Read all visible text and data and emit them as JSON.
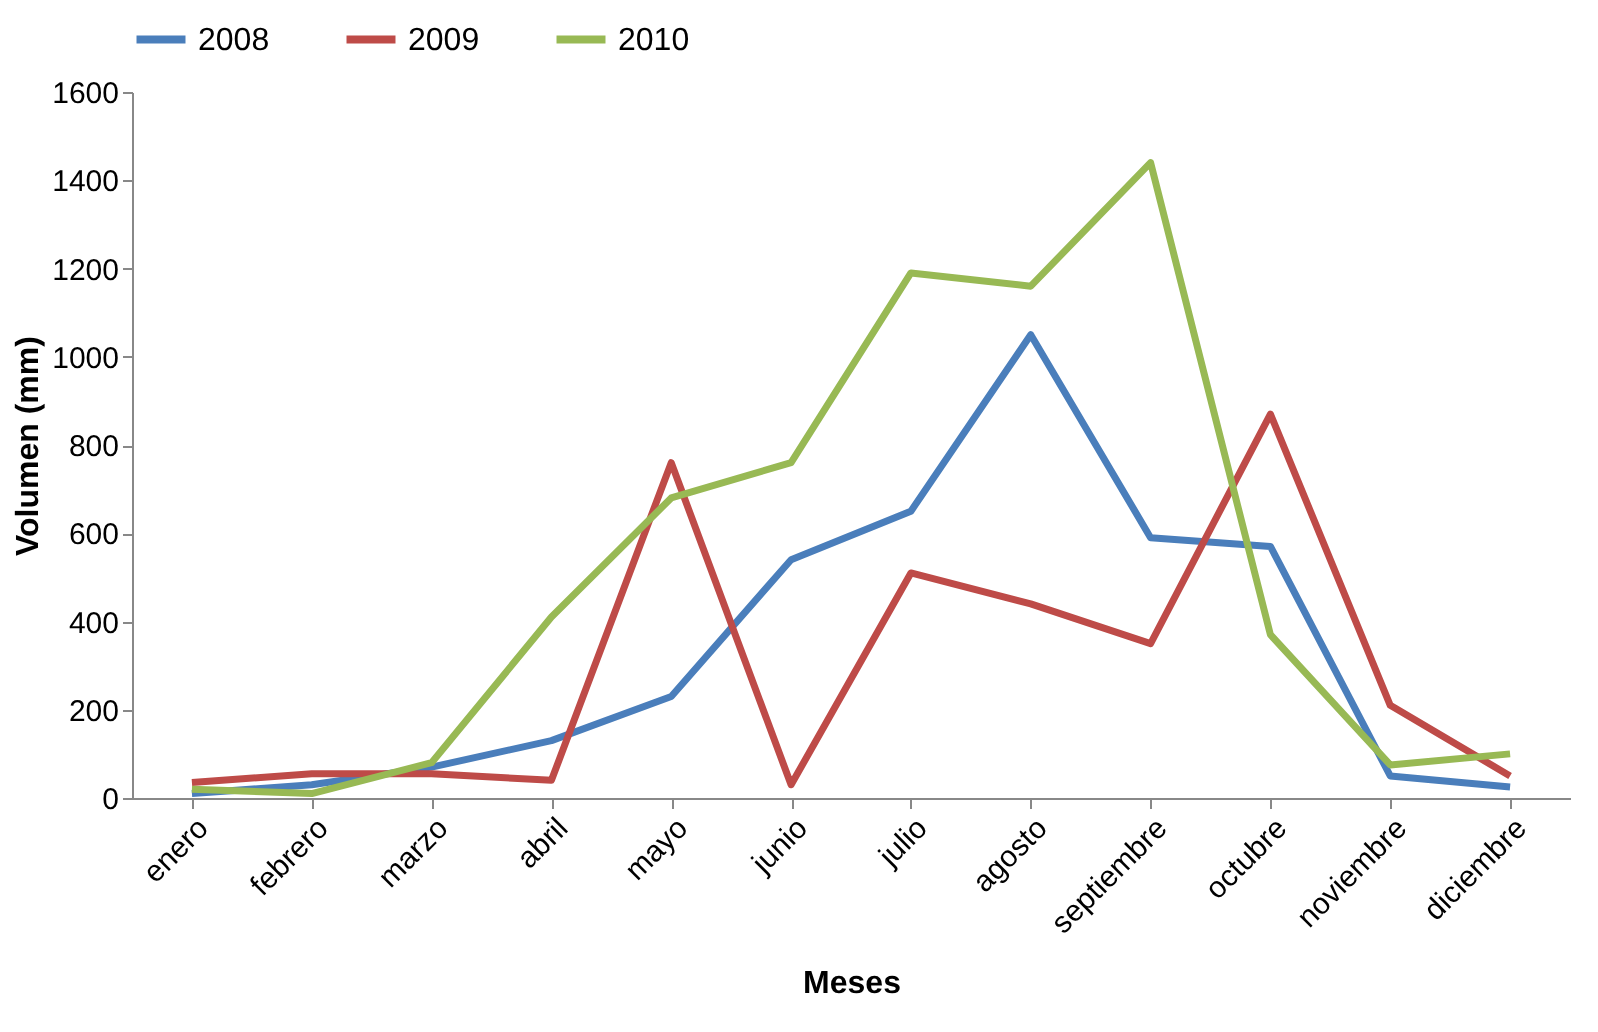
{
  "chart_data": {
    "type": "line",
    "xlabel": "Meses",
    "ylabel": "Volumen (mm)",
    "categories": [
      "enero",
      "febrero",
      "marzo",
      "abril",
      "mayo",
      "junio",
      "julio",
      "agosto",
      "septiembre",
      "octubre",
      "noviembre",
      "diciembre"
    ],
    "series": [
      {
        "name": "2008",
        "color": "#4a7ebb",
        "values": [
          10,
          30,
          70,
          130,
          230,
          540,
          650,
          1050,
          590,
          570,
          50,
          25
        ]
      },
      {
        "name": "2009",
        "color": "#be4b48",
        "values": [
          35,
          55,
          55,
          40,
          760,
          30,
          510,
          440,
          350,
          870,
          210,
          50
        ]
      },
      {
        "name": "2010",
        "color": "#98b954",
        "values": [
          20,
          10,
          80,
          410,
          680,
          760,
          1190,
          1160,
          1440,
          370,
          75,
          100
        ]
      }
    ],
    "ylim": [
      0,
      1600
    ],
    "yticks": [
      0,
      200,
      400,
      600,
      800,
      1000,
      1200,
      1400,
      1600
    ],
    "grid": false,
    "legend": "top",
    "marker": "none",
    "line_style": "solid"
  }
}
